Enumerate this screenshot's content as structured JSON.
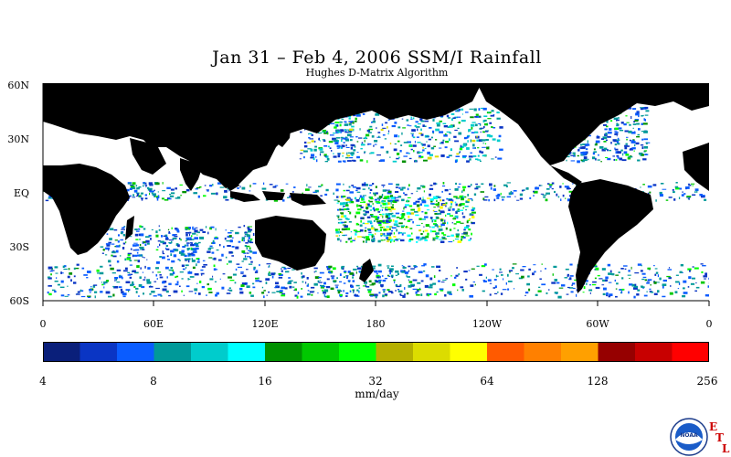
{
  "title": "Jan 31 – Feb 4, 2006 SSM/I Rainfall",
  "subtitle": "Hughes D-Matrix Algorithm",
  "lat_labels": [
    "60N",
    "30N",
    "EQ",
    "30S",
    "60S"
  ],
  "lon_labels": [
    "0",
    "60E",
    "120E",
    "180",
    "120W",
    "60W",
    "0"
  ],
  "colorbar": {
    "colors": [
      "#0a1f7a",
      "#0a35c4",
      "#0a5cff",
      "#009999",
      "#00cccc",
      "#00ffff",
      "#009000",
      "#00c800",
      "#00ff00",
      "#b5b000",
      "#dcdc00",
      "#ffff00",
      "#ff5a00",
      "#ff8000",
      "#ffa000",
      "#960000",
      "#c80000",
      "#ff0000"
    ],
    "tick_labels": [
      "4",
      "8",
      "16",
      "32",
      "64",
      "128",
      "256"
    ],
    "units": "mm/day"
  },
  "logo": {
    "name": "noaa-logo",
    "letters": [
      "E",
      "T",
      "L"
    ]
  }
}
